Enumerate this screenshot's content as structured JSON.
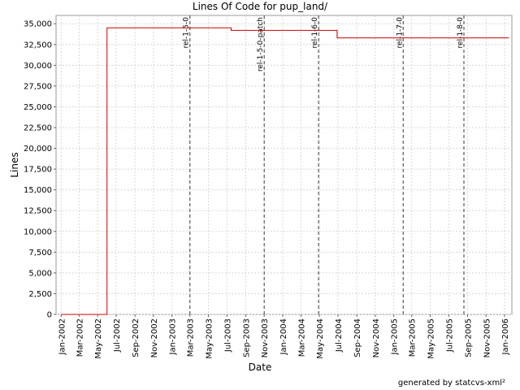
{
  "chart_data": {
    "type": "line",
    "title": "Lines Of Code for pup_land/",
    "xlabel": "Date",
    "ylabel": "Lines",
    "ylim": [
      0,
      36000
    ],
    "xlim": [
      "2001-12-15",
      "2006-01-25"
    ],
    "grid": true,
    "legend": "none",
    "line_color": "#cc0000",
    "marker_color": "#666666",
    "y_ticks": [
      "0",
      "2,500",
      "5,000",
      "7,500",
      "10,000",
      "12,500",
      "15,000",
      "17,500",
      "20,000",
      "22,500",
      "25,000",
      "27,500",
      "30,000",
      "32,500",
      "35,000"
    ],
    "x_ticks": [
      "Jan-2002",
      "Mar-2002",
      "May-2002",
      "Jul-2002",
      "Sep-2002",
      "Nov-2002",
      "Jan-2003",
      "Mar-2003",
      "May-2003",
      "Jul-2003",
      "Sep-2003",
      "Nov-2003",
      "Jan-2004",
      "Mar-2004",
      "May-2004",
      "Jul-2004",
      "Sep-2004",
      "Nov-2004",
      "Jan-2005",
      "Mar-2005",
      "May-2005",
      "Jul-2005",
      "Sep-2005",
      "Nov-2005",
      "Jan-2006"
    ],
    "series": [
      {
        "points": [
          [
            "2002-01-01",
            0
          ],
          [
            "2002-06-01",
            0
          ],
          [
            "2002-06-01",
            34500
          ],
          [
            "2003-07-15",
            34500
          ],
          [
            "2003-07-15",
            34200
          ],
          [
            "2004-06-28",
            34200
          ],
          [
            "2004-06-28",
            33300
          ],
          [
            "2006-01-15",
            33300
          ]
        ]
      }
    ],
    "markers": [
      {
        "label": "rel-1-5-0",
        "date": "2003-03-01"
      },
      {
        "label": "rel-1-5-0-patch",
        "date": "2003-11-01"
      },
      {
        "label": "rel-1-6-0",
        "date": "2004-04-28"
      },
      {
        "label": "rel-1-7-0",
        "date": "2005-02-01"
      },
      {
        "label": "rel-1-8-0",
        "date": "2005-08-20"
      }
    ]
  },
  "footer": "generated by statcvs-xml²"
}
